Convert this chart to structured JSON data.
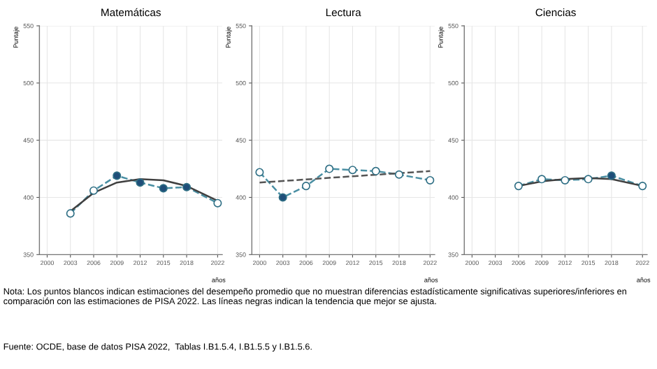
{
  "chart_data": [
    {
      "type": "line",
      "title": "Matemáticas",
      "ylabel": "Puntaje",
      "xlabel": "años",
      "xlim": [
        1999,
        2022.6
      ],
      "ylim": [
        350,
        550
      ],
      "xticks": [
        2000,
        2003,
        2006,
        2009,
        2012,
        2015,
        2018,
        2022
      ],
      "yticks": [
        350,
        400,
        450,
        500,
        550
      ],
      "grid": true,
      "legend": false,
      "series": [
        {
          "x": [
            2003,
            2006,
            2009,
            2012,
            2015,
            2018,
            2022
          ],
          "values": [
            386,
            406,
            419,
            413,
            408,
            409,
            395
          ],
          "color": "#4a8fa3",
          "line_style": "dashed",
          "marker": "circle",
          "colors": [
            "#ffffff",
            "#ffffff",
            "#1f4e79",
            "#1f4e79",
            "#1f4e79",
            "#1f4e79",
            "#ffffff"
          ]
        },
        {
          "x": [
            2003,
            2006,
            2009,
            2012,
            2015,
            2018,
            2022
          ],
          "values": [
            388,
            404,
            413,
            416,
            415,
            410,
            397
          ],
          "color": "#404040",
          "line_style": "solid",
          "marker": "none"
        }
      ],
      "annotations": [
        "Nota: Los puntos blancos indican estimaciones del desempeño promedio que no muestran diferencias estadísticamente significativas superiores/inferiores en comparación con las estimaciones de PISA 2022. Las líneas negras indican la tendencia que mejor se ajusta.",
        "Fuente: OCDE, base de datos PISA 2022,  Tablas I.B1.5.4, I.B1.5.5 y I.B1.5.6."
      ]
    },
    {
      "type": "line",
      "title": "Lectura",
      "ylabel": "Puntaje",
      "xlabel": "años",
      "xlim": [
        1999,
        2022.6
      ],
      "ylim": [
        350,
        550
      ],
      "xticks": [
        2000,
        2003,
        2006,
        2009,
        2012,
        2015,
        2018,
        2022
      ],
      "yticks": [
        350,
        400,
        450,
        500,
        550
      ],
      "grid": true,
      "legend": false,
      "series": [
        {
          "x": [
            2000,
            2003,
            2006,
            2009,
            2012,
            2015,
            2018,
            2022
          ],
          "values": [
            422,
            400,
            410,
            425,
            424,
            423,
            420,
            415
          ],
          "color": "#4a8fa3",
          "line_style": "dashed",
          "marker": "circle",
          "colors": [
            "#ffffff",
            "#1f4e79",
            "#ffffff",
            "#ffffff",
            "#ffffff",
            "#ffffff",
            "#ffffff",
            "#ffffff"
          ]
        },
        {
          "x": [
            2000,
            2022
          ],
          "values": [
            413,
            423
          ],
          "color": "#555555",
          "line_style": "dashed",
          "marker": "none"
        }
      ]
    },
    {
      "type": "line",
      "title": "Ciencias",
      "ylabel": "Puntaje",
      "xlabel": "años",
      "xlim": [
        1999,
        2022.6
      ],
      "ylim": [
        350,
        550
      ],
      "xticks": [
        2000,
        2003,
        2006,
        2009,
        2012,
        2015,
        2018,
        2022
      ],
      "yticks": [
        350,
        400,
        450,
        500,
        550
      ],
      "grid": true,
      "legend": false,
      "series": [
        {
          "x": [
            2006,
            2009,
            2012,
            2015,
            2018,
            2022
          ],
          "values": [
            410,
            416,
            415,
            416,
            419,
            410
          ],
          "color": "#4a8fa3",
          "line_style": "dashed",
          "marker": "circle",
          "colors": [
            "#ffffff",
            "#ffffff",
            "#ffffff",
            "#ffffff",
            "#1f4e79",
            "#ffffff"
          ]
        },
        {
          "x": [
            2006,
            2009,
            2012,
            2015,
            2018,
            2022
          ],
          "values": [
            410,
            414,
            416,
            417,
            416,
            410
          ],
          "color": "#404040",
          "line_style": "solid",
          "marker": "none"
        }
      ]
    }
  ]
}
